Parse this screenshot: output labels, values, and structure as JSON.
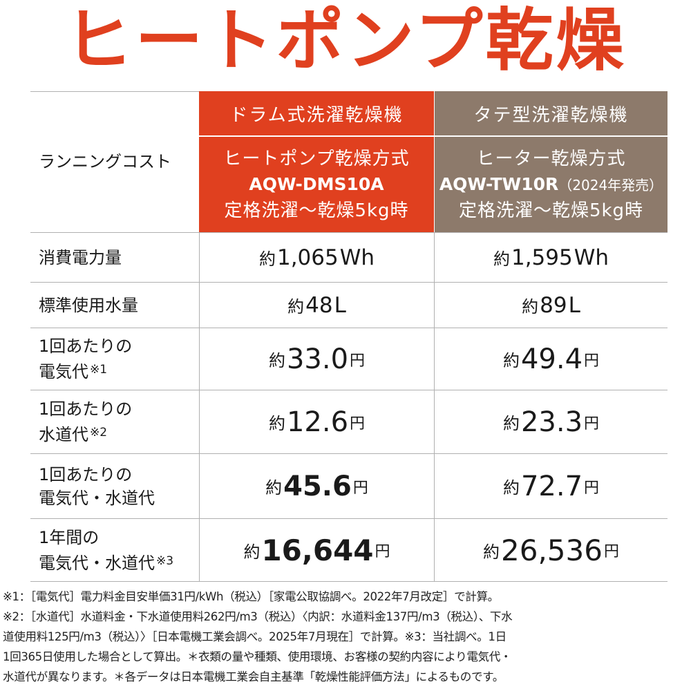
{
  "title": "ヒートポンプ乾燥",
  "table": {
    "corner_label": "ランニングコスト",
    "columns": [
      {
        "type_label": "ドラム式洗濯乾燥機",
        "method": "ヒートポンプ乾燥方式",
        "model": "AQW-DMS10A",
        "model_note": "",
        "condition": "定格洗濯～乾燥5kg時",
        "color": "#e0401f"
      },
      {
        "type_label": "タテ型洗濯乾燥機",
        "method": "ヒーター乾燥方式",
        "model": "AQW-TW10R",
        "model_note": "（2024年発売）",
        "condition": "定格洗濯～乾燥5kg時",
        "color": "#8d7a6b"
      }
    ],
    "rows": [
      {
        "label_line1": "消費電力量",
        "label_line2": "",
        "note": "",
        "values": [
          {
            "prefix": "約",
            "value": "1,065",
            "unit": "Wh"
          },
          {
            "prefix": "約",
            "value": "1,595",
            "unit": "Wh"
          }
        ]
      },
      {
        "label_line1": "標準使用水量",
        "label_line2": "",
        "note": "",
        "values": [
          {
            "prefix": "約",
            "value": "48",
            "unit": "L"
          },
          {
            "prefix": "約",
            "value": "89",
            "unit": "L"
          }
        ]
      },
      {
        "label_line1": "1回あたりの",
        "label_line2": "電気代",
        "note": "※1",
        "values": [
          {
            "prefix": "約",
            "value": "33.0",
            "unit": "円"
          },
          {
            "prefix": "約",
            "value": "49.4",
            "unit": "円"
          }
        ]
      },
      {
        "label_line1": "1回あたりの",
        "label_line2": "水道代",
        "note": "※2",
        "values": [
          {
            "prefix": "約",
            "value": "12.6",
            "unit": "円"
          },
          {
            "prefix": "約",
            "value": "23.3",
            "unit": "円"
          }
        ]
      },
      {
        "label_line1": "1回あたりの",
        "label_line2": "電気代・水道代",
        "note": "",
        "values": [
          {
            "prefix": "約",
            "value": "45.6",
            "unit": "円"
          },
          {
            "prefix": "約",
            "value": "72.7",
            "unit": "円"
          }
        ]
      },
      {
        "label_line1": "1年間の",
        "label_line2": "電気代・水道代",
        "note": "※3",
        "values": [
          {
            "prefix": "約",
            "value": "16,644",
            "unit": "円"
          },
          {
            "prefix": "約",
            "value": "26,536",
            "unit": "円"
          }
        ]
      }
    ]
  },
  "footnotes": [
    "※1：［電気代］電力料金目安単価31円/kWh（税込）［家電公取協調べ。2022年7月改定］で計算。",
    "※2：［水道代］水道料金・下水道使用料262円/m3（税込）〈内訳：水道料金137円/m3（税込）、下水",
    "道使用料125円/m3（税込）〉［日本電機工業会調べ。2025年7月現在］で計算。※3：当社調べ。1日",
    "1回365日使用した場合として算出。＊衣類の量や種類、使用環境、お客様の契約内容により電気代・",
    "水道代が異なります。＊各データは日本電機工業会自主基準「乾燥性能評価方法」によるものです。"
  ]
}
